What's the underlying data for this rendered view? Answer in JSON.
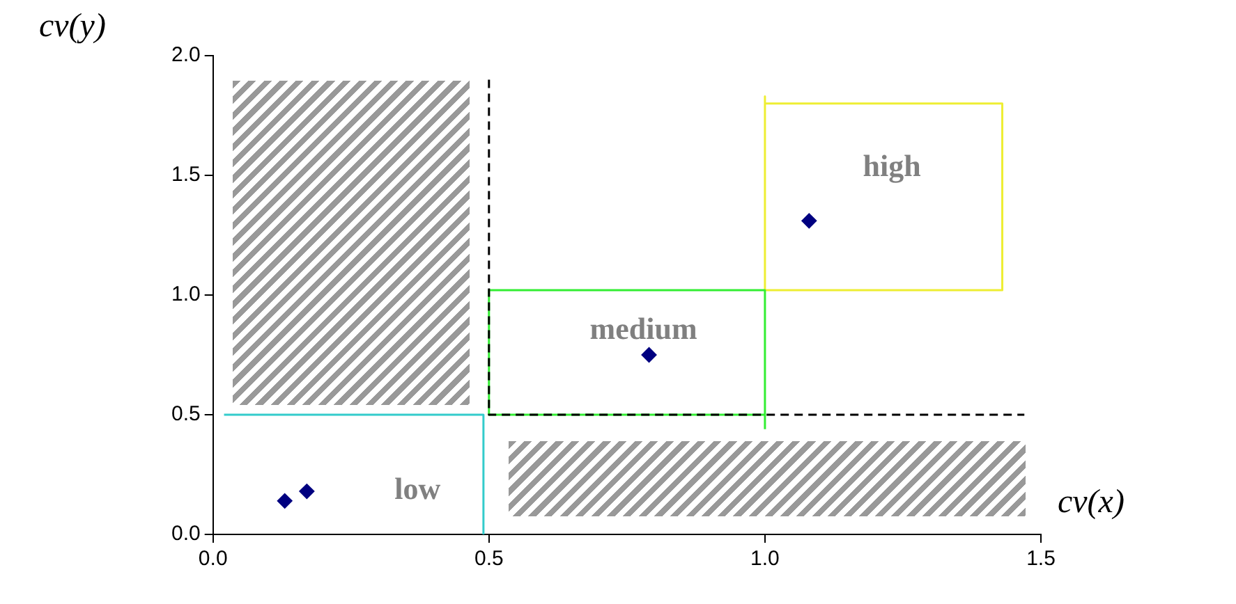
{
  "chart_data": {
    "type": "scatter",
    "xlabel": "cv(x)",
    "ylabel": "cv(y)",
    "xlim": [
      0,
      1.5
    ],
    "xticks": [
      {
        "value": 0,
        "label": "0.0"
      },
      {
        "value": 0.5,
        "label": "0.5"
      },
      {
        "value": 1,
        "label": "1.0"
      },
      {
        "value": 1.5,
        "label": "1.5"
      }
    ],
    "ylim": [
      0,
      2
    ],
    "yticks": [
      {
        "value": 0,
        "label": "0.0"
      },
      {
        "value": 0.5,
        "label": "0.5"
      },
      {
        "value": 1,
        "label": "1.0"
      },
      {
        "value": 1.5,
        "label": "1.5"
      },
      {
        "value": 2,
        "label": "2.0"
      }
    ],
    "grid": false,
    "legend": false,
    "series": [
      {
        "type": "line",
        "color": "#000000",
        "line_style": "dashed",
        "marker": "none",
        "x": [
          0.5,
          0.5,
          1.47
        ],
        "values": [
          1.9,
          0.5,
          0.5
        ]
      },
      {
        "type": "line",
        "color": "#33cccc",
        "line_style": "solid",
        "marker": "none",
        "x": [
          0.02,
          0.49,
          0.49
        ],
        "values": [
          0.5,
          0.5,
          0
        ]
      },
      {
        "type": "line",
        "color": "#33ee33",
        "line_style": "solid",
        "marker": "none",
        "x": [
          1.0,
          1.0,
          0.5,
          0.5,
          1.0
        ],
        "values": [
          0.44,
          1.02,
          1.02,
          0.5,
          0.5
        ]
      },
      {
        "type": "line",
        "color": "#eeee33",
        "line_style": "solid",
        "marker": "none",
        "x": [
          1.0,
          1.0,
          1.43,
          1.43,
          1.0
        ],
        "values": [
          1.83,
          1.02,
          1.02,
          1.8,
          1.8
        ]
      },
      {
        "type": "scatter",
        "color": "#000080",
        "marker": "diamond",
        "x": [
          0.13,
          0.17,
          0.79,
          1.08
        ],
        "values": [
          0.14,
          0.18,
          0.75,
          1.31
        ]
      }
    ],
    "annotations": [
      "low",
      "medium",
      "high"
    ]
  }
}
